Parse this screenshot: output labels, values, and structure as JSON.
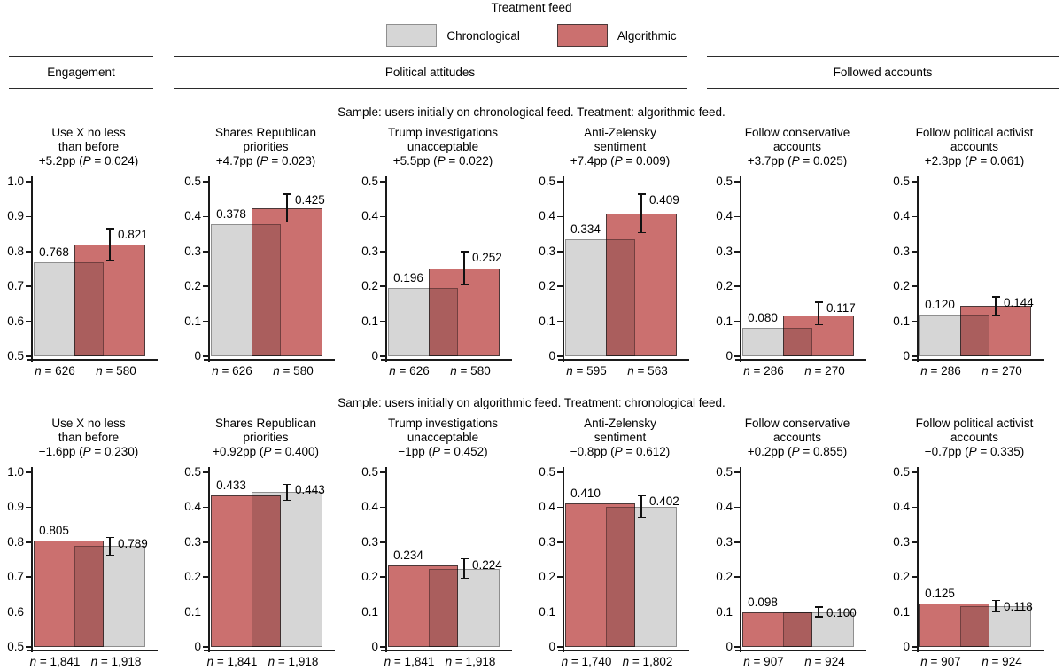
{
  "chart_data": {
    "type": "bar",
    "legend": {
      "title": "Treatment feed",
      "items": [
        {
          "id": "chronological",
          "label": "Chronological"
        },
        {
          "id": "algorithmic",
          "label": "Algorithmic"
        }
      ]
    },
    "sections": [
      {
        "label": "Engagement"
      },
      {
        "label": "Political attitudes"
      },
      {
        "label": "Followed accounts"
      }
    ],
    "colors": {
      "chronological": {
        "fill": "#d6d6d6",
        "border": "#8f8f8f"
      },
      "algorithmic": {
        "fill": "#cb706f",
        "border": "#4a3838"
      },
      "axis": "#1a1a1a",
      "error_bar": "#111111"
    },
    "rows": [
      {
        "sample_note": "Sample: users initially on chronological feed. Treatment: algorithmic feed.",
        "panels": [
          {
            "title_lines": [
              "Use X no less",
              "than before"
            ],
            "effect": "+5.2pp",
            "p_value": "0.024",
            "ymin": 0.5,
            "ymax": 1.0,
            "ticks": [
              "1.0",
              "0.9",
              "0.8",
              "0.7",
              "0.6",
              "0.5"
            ],
            "bars": [
              {
                "group": "chronological",
                "value": 0.768,
                "label": "0.768",
                "n": "n = 626"
              },
              {
                "group": "algorithmic",
                "value": 0.821,
                "label": "0.821",
                "n": "n = 580",
                "ci": [
                  0.776,
                  0.866
                ]
              }
            ]
          },
          {
            "title_lines": [
              "Shares Republican",
              "priorities"
            ],
            "effect": "+4.7pp",
            "p_value": "0.023",
            "ymin": 0,
            "ymax": 0.5,
            "ticks": [
              "0.5",
              "0.4",
              "0.3",
              "0.2",
              "0.1",
              "0"
            ],
            "bars": [
              {
                "group": "chronological",
                "value": 0.378,
                "label": "0.378",
                "n": "n = 626"
              },
              {
                "group": "algorithmic",
                "value": 0.425,
                "label": "0.425",
                "n": "n = 580",
                "ci": [
                  0.385,
                  0.465
                ]
              }
            ]
          },
          {
            "title_lines": [
              "Trump investigations",
              "unacceptable"
            ],
            "effect": "+5.5pp",
            "p_value": "0.022",
            "ymin": 0,
            "ymax": 0.5,
            "ticks": [
              "0.5",
              "0.4",
              "0.3",
              "0.2",
              "0.1",
              "0"
            ],
            "bars": [
              {
                "group": "chronological",
                "value": 0.196,
                "label": "0.196",
                "n": "n = 626"
              },
              {
                "group": "algorithmic",
                "value": 0.252,
                "label": "0.252",
                "n": "n = 580",
                "ci": [
                  0.205,
                  0.3
                ]
              }
            ]
          },
          {
            "title_lines": [
              "Anti-Zelensky",
              "sentiment"
            ],
            "effect": "+7.4pp",
            "p_value": "0.009",
            "ymin": 0,
            "ymax": 0.5,
            "ticks": [
              "0.5",
              "0.4",
              "0.3",
              "0.2",
              "0.1",
              "0"
            ],
            "bars": [
              {
                "group": "chronological",
                "value": 0.334,
                "label": "0.334",
                "n": "n = 595"
              },
              {
                "group": "algorithmic",
                "value": 0.409,
                "label": "0.409",
                "n": "n = 563",
                "ci": [
                  0.354,
                  0.464
                ]
              }
            ]
          },
          {
            "title_lines": [
              "Follow conservative",
              "accounts"
            ],
            "effect": "+3.7pp",
            "p_value": "0.025",
            "ymin": 0,
            "ymax": 0.5,
            "ticks": [
              "0.5",
              "0.4",
              "0.3",
              "0.2",
              "0.1",
              "0"
            ],
            "bars": [
              {
                "group": "chronological",
                "value": 0.08,
                "label": "0.080",
                "n": "n = 286"
              },
              {
                "group": "algorithmic",
                "value": 0.117,
                "label": "0.117",
                "n": "n = 270",
                "ci": [
                  0.09,
                  0.155
                ]
              }
            ]
          },
          {
            "title_lines": [
              "Follow political activist",
              "accounts"
            ],
            "effect": "+2.3pp",
            "p_value": "0.061",
            "ymin": 0,
            "ymax": 0.5,
            "ticks": [
              "0.5",
              "0.4",
              "0.3",
              "0.2",
              "0.1",
              "0"
            ],
            "bars": [
              {
                "group": "chronological",
                "value": 0.12,
                "label": "0.120",
                "n": "n = 286"
              },
              {
                "group": "algorithmic",
                "value": 0.144,
                "label": "0.144",
                "n": "n = 270",
                "ci": [
                  0.118,
                  0.17
                ]
              }
            ]
          }
        ]
      },
      {
        "sample_note": "Sample: users initially on algorithmic feed. Treatment: chronological feed.",
        "panels": [
          {
            "title_lines": [
              "Use X no less",
              "than before"
            ],
            "effect": "−1.6pp",
            "p_value": "0.230",
            "ymin": 0.5,
            "ymax": 1.0,
            "ticks": [
              "1.0",
              "0.9",
              "0.8",
              "0.7",
              "0.6",
              "0.5"
            ],
            "bars": [
              {
                "group": "algorithmic",
                "value": 0.805,
                "label": "0.805",
                "n": "n = 1,841"
              },
              {
                "group": "chronological",
                "value": 0.789,
                "label": "0.789",
                "n": "n = 1,918",
                "ci": [
                  0.763,
                  0.813
                ]
              }
            ]
          },
          {
            "title_lines": [
              "Shares Republican",
              "priorities"
            ],
            "effect": "+0.92pp",
            "p_value": "0.400",
            "ymin": 0,
            "ymax": 0.5,
            "ticks": [
              "0.5",
              "0.4",
              "0.3",
              "0.2",
              "0.1",
              "0"
            ],
            "bars": [
              {
                "group": "algorithmic",
                "value": 0.433,
                "label": "0.433",
                "n": "n = 1,841"
              },
              {
                "group": "chronological",
                "value": 0.443,
                "label": "0.443",
                "n": "n = 1,918",
                "ci": [
                  0.42,
                  0.466
                ]
              }
            ]
          },
          {
            "title_lines": [
              "Trump investigations",
              "unacceptable"
            ],
            "effect": "−1pp",
            "p_value": "0.452",
            "ymin": 0,
            "ymax": 0.5,
            "ticks": [
              "0.5",
              "0.4",
              "0.3",
              "0.2",
              "0.1",
              "0"
            ],
            "bars": [
              {
                "group": "algorithmic",
                "value": 0.234,
                "label": "0.234",
                "n": "n = 1,841"
              },
              {
                "group": "chronological",
                "value": 0.224,
                "label": "0.224",
                "n": "n = 1,918",
                "ci": [
                  0.197,
                  0.252
                ]
              }
            ]
          },
          {
            "title_lines": [
              "Anti-Zelensky",
              "sentiment"
            ],
            "effect": "−0.8pp",
            "p_value": "0.612",
            "ymin": 0,
            "ymax": 0.5,
            "ticks": [
              "0.5",
              "0.4",
              "0.3",
              "0.2",
              "0.1",
              "0"
            ],
            "bars": [
              {
                "group": "algorithmic",
                "value": 0.41,
                "label": "0.410",
                "n": "n = 1,740"
              },
              {
                "group": "chronological",
                "value": 0.402,
                "label": "0.402",
                "n": "n = 1,802",
                "ci": [
                  0.37,
                  0.434
                ]
              }
            ]
          },
          {
            "title_lines": [
              "Follow conservative",
              "accounts"
            ],
            "effect": "+0.2pp",
            "p_value": "0.855",
            "ymin": 0,
            "ymax": 0.5,
            "ticks": [
              "0.5",
              "0.4",
              "0.3",
              "0.2",
              "0.1",
              "0"
            ],
            "bars": [
              {
                "group": "algorithmic",
                "value": 0.098,
                "label": "0.098",
                "n": "n = 907"
              },
              {
                "group": "chronological",
                "value": 0.1,
                "label": "0.100",
                "n": "n = 924",
                "ci": [
                  0.086,
                  0.114
                ]
              }
            ]
          },
          {
            "title_lines": [
              "Follow political activist",
              "accounts"
            ],
            "effect": "−0.7pp",
            "p_value": "0.335",
            "ymin": 0,
            "ymax": 0.5,
            "ticks": [
              "0.5",
              "0.4",
              "0.3",
              "0.2",
              "0.1",
              "0"
            ],
            "bars": [
              {
                "group": "algorithmic",
                "value": 0.125,
                "label": "0.125",
                "n": "n = 907"
              },
              {
                "group": "chronological",
                "value": 0.118,
                "label": "0.118",
                "n": "n = 924",
                "ci": [
                  0.103,
                  0.133
                ]
              }
            ]
          }
        ]
      }
    ]
  }
}
